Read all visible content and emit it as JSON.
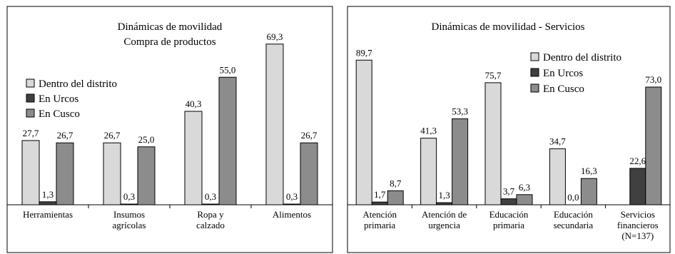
{
  "chart_data": [
    {
      "type": "bar",
      "title": "Dinámicas de movilidad",
      "subtitle": "Compra de productos",
      "categories": [
        [
          "Herramientas"
        ],
        [
          "Insumos",
          "agrícolas"
        ],
        [
          "Ropa y",
          "calzado"
        ],
        [
          "Alimentos"
        ]
      ],
      "series": [
        {
          "name": "Dentro del distrito",
          "color": "#d9d9d9",
          "values": [
            27.7,
            26.7,
            40.3,
            69.3
          ],
          "labels": [
            "27,7",
            "26,7",
            "40,3",
            "69,3"
          ]
        },
        {
          "name": "En Urcos",
          "color": "#404040",
          "values": [
            1.3,
            0.3,
            0.3,
            0.3
          ],
          "labels": [
            "1,3",
            "0,3",
            "0,3",
            "0,3"
          ]
        },
        {
          "name": "En Cusco",
          "color": "#8c8c8c",
          "values": [
            26.7,
            25.0,
            55.0,
            26.7
          ],
          "labels": [
            "26,7",
            "25,0",
            "55,0",
            "26,7"
          ]
        }
      ],
      "ylim": [
        0,
        80
      ],
      "grid": false,
      "legend": "middle-left"
    },
    {
      "type": "bar",
      "title": "Dinámicas de movilidad - Servicios",
      "categories": [
        [
          "Atención",
          "primaria"
        ],
        [
          "Atención de",
          "urgencia"
        ],
        [
          "Educación",
          "primaria"
        ],
        [
          "Educación",
          "secundaria"
        ],
        [
          "Servicios",
          "financieros",
          "(N=137)"
        ]
      ],
      "series": [
        {
          "name": "Dentro del distrito",
          "color": "#d9d9d9",
          "values": [
            89.7,
            41.3,
            75.7,
            34.7,
            null
          ],
          "labels": [
            "89,7",
            "41,3",
            "75,7",
            "34,7",
            null
          ]
        },
        {
          "name": "En Urcos",
          "color": "#404040",
          "values": [
            1.7,
            1.3,
            3.7,
            0.0,
            22.6
          ],
          "labels": [
            "1,7",
            "1,3",
            "3,7",
            "0,0",
            "22,6"
          ]
        },
        {
          "name": "En Cusco",
          "color": "#8c8c8c",
          "values": [
            8.7,
            53.3,
            6.3,
            16.3,
            73.0
          ],
          "labels": [
            "8,7",
            "53,3",
            "6,3",
            "16,3",
            "73,0"
          ]
        }
      ],
      "ylim": [
        0,
        100
      ],
      "grid": false,
      "legend": "top-right"
    }
  ]
}
